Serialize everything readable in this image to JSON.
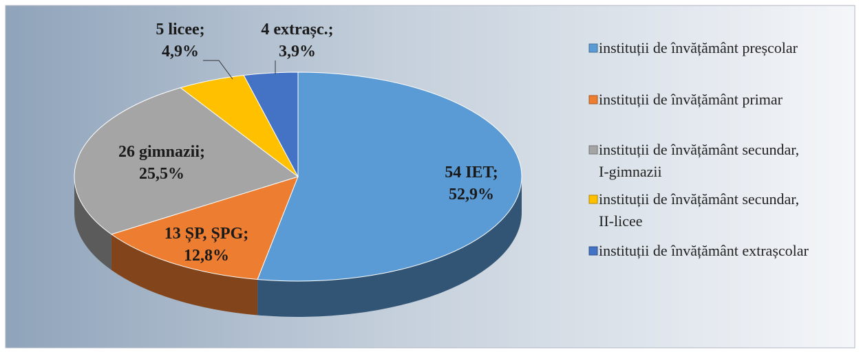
{
  "chart_data": {
    "type": "pie3d",
    "categories": [
      "instituții de învățământ preșcolar",
      "instituții de învățământ primar",
      "instituții de învățământ secundar, I-gimnazii",
      "instituții de învățământ secundar, II-licee",
      "instituții de învățământ extrașcolar"
    ],
    "values": [
      52.9,
      12.8,
      25.5,
      4.9,
      3.9
    ],
    "value_labels": [
      "54 IET; 52,9%",
      "13 ȘP, ȘPG; 12,8%",
      "26 gimnazii; 25,5%",
      "5 licee; 4,9%",
      "4 extrașc.; 3,9%"
    ],
    "colors": [
      "#5b9bd5",
      "#ed7d31",
      "#a5a5a5",
      "#ffc000",
      "#4472c4"
    ],
    "legend": "right"
  }
}
